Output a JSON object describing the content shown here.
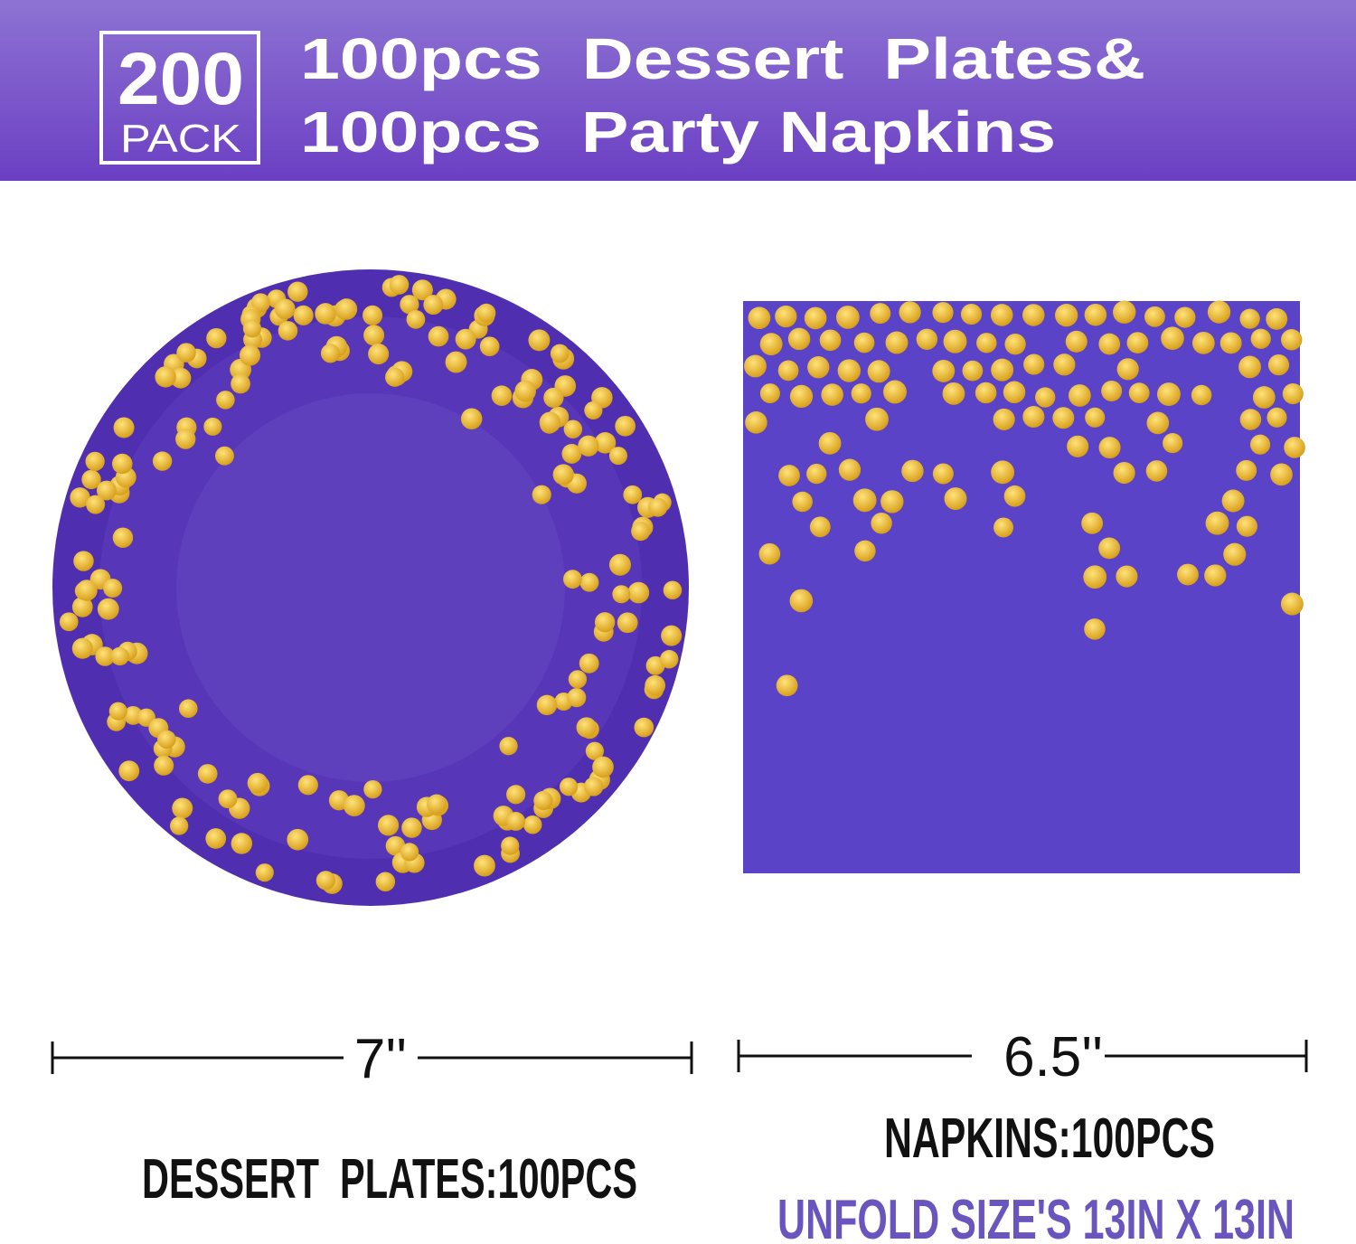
{
  "badge": {
    "number": "200",
    "unit": "PACK"
  },
  "header": {
    "line1": "100pcs  Dessert  Plates&",
    "line2": "100pcs  Party Napkins"
  },
  "plate": {
    "size": "7''",
    "label": "DESSERT  PLATES:100PCS"
  },
  "napkin": {
    "size": "6.5''",
    "label": "NAPKINS:100PCS",
    "unfold": "UNFOLD SIZE'S 13IN X 13IN"
  }
}
